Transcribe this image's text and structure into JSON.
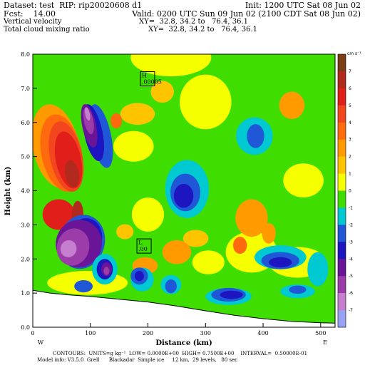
{
  "header": {
    "dataset": "Dataset: test  RIP: rip20020608 d1",
    "init": "Init: 1200 UTC Sat 08 Jun 02",
    "fcst": "Fcst:    14.00",
    "valid": "Valid: 0200 UTC Sun 09 Jun 02 (2100 CDT Sat 08 Jun 02)",
    "field1": "Vertical velocity",
    "field1_xy": "XY=  32.8, 34.2 to   76.4, 36.1",
    "field2": "Total cloud mixing ratio",
    "field2_xy": "XY=  32.8, 34.2 to   76.4, 36.1"
  },
  "footer": {
    "line1": "CONTOURS:  UNITS=g kg⁻¹  LOW= 0.0000E+00  HIGH= 0.7500E+00    INTERVAL=  0.50000E-01",
    "line2": "Model info: V3.5.0  Grell      Blackadar  Simple ice     12 km,  29 levels,   80 sec"
  },
  "chart_data": {
    "type": "heatmap",
    "title": "Vertical velocity / Total cloud mixing ratio",
    "xlabel": "Distance (km)",
    "ylabel": "Height (km)",
    "xlim": [
      0,
      525
    ],
    "ylim": [
      0,
      8
    ],
    "x_ticks": [
      0,
      100,
      200,
      300,
      400,
      500
    ],
    "x_tick_labels": [
      "0",
      "100",
      "200",
      "300",
      "400",
      "500"
    ],
    "y_ticks": [
      0,
      1,
      2,
      3,
      4,
      5,
      6,
      7,
      8
    ],
    "y_tick_labels": [
      "0.0",
      "1.0",
      "2.0",
      "3.0",
      "4.0",
      "5.0",
      "6.0",
      "7.0",
      "8.0"
    ],
    "end_labels": {
      "left": "W",
      "right": "E"
    },
    "colorbar": {
      "units": "cm s⁻¹",
      "levels": [
        {
          "label": "7",
          "color": "#7a3d16"
        },
        {
          "label": "6",
          "color": "#b22a1d"
        },
        {
          "label": "5",
          "color": "#e01f1a"
        },
        {
          "label": "4",
          "color": "#f2461f"
        },
        {
          "label": "3",
          "color": "#ff6a0e"
        },
        {
          "label": "2",
          "color": "#ff9a00"
        },
        {
          "label": "1",
          "color": "#ffc400"
        },
        {
          "label": "0",
          "color": "#f6ff00"
        },
        {
          "label": "-1",
          "color": "#3fde00"
        },
        {
          "label": "-2",
          "color": "#00c9d1"
        },
        {
          "label": "-3",
          "color": "#1f57d6"
        },
        {
          "label": "-4",
          "color": "#1d16c0"
        },
        {
          "label": "-5",
          "color": "#6a1497"
        },
        {
          "label": "-6",
          "color": "#9c3ca9"
        },
        {
          "label": "-7",
          "color": "#c67fcf"
        },
        {
          "label": "",
          "color": "#9aa2f4"
        }
      ]
    },
    "extrema": [
      {
        "kind": "H",
        "value": ".00005",
        "x": 198,
        "y": 7.3
      },
      {
        "kind": "L",
        "value": ".00",
        "x": 192,
        "y": 2.4
      }
    ],
    "terrain_km": [
      {
        "x": 0,
        "y": 1.08
      },
      {
        "x": 30,
        "y": 1.0
      },
      {
        "x": 60,
        "y": 0.95
      },
      {
        "x": 100,
        "y": 0.9
      },
      {
        "x": 150,
        "y": 0.82
      },
      {
        "x": 200,
        "y": 0.74
      },
      {
        "x": 250,
        "y": 0.62
      },
      {
        "x": 300,
        "y": 0.48
      },
      {
        "x": 350,
        "y": 0.35
      },
      {
        "x": 400,
        "y": 0.25
      },
      {
        "x": 450,
        "y": 0.17
      },
      {
        "x": 500,
        "y": 0.13
      },
      {
        "x": 525,
        "y": 0.12
      }
    ]
  }
}
